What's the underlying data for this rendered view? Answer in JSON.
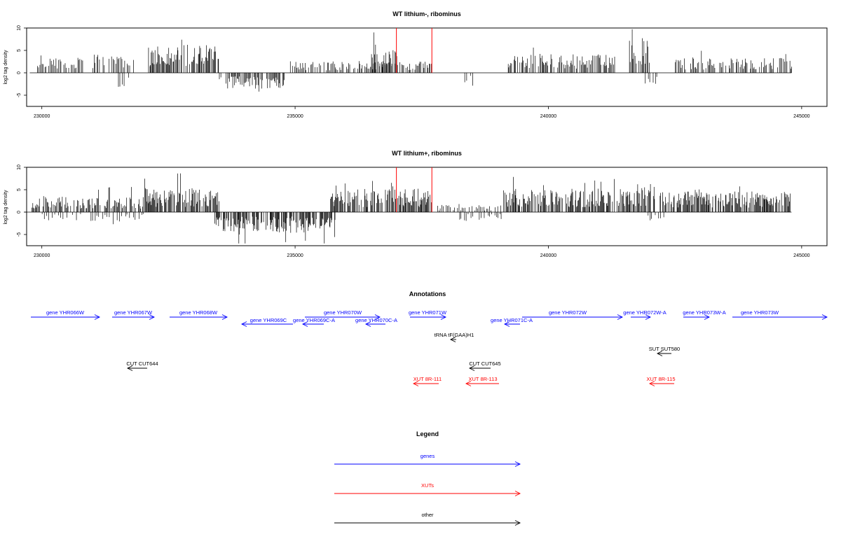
{
  "chart_data": [
    {
      "type": "bar",
      "title": "WT lithium-, ribominus",
      "ylabel": "log2 tag density",
      "xlim": [
        229700,
        245500
      ],
      "ylim": [
        -7.5,
        10
      ],
      "xticks": [
        230000,
        235000,
        240000,
        245000
      ],
      "yticks": [
        10,
        5,
        0,
        -5
      ],
      "grid": false,
      "region_markers": [
        237000,
        237700
      ],
      "segments": [
        {
          "x": [
            229900,
            230800
          ],
          "mean": 2.0,
          "density": 0.8
        },
        {
          "x": [
            231000,
            231800
          ],
          "mean": 2.5,
          "density": 0.8
        },
        {
          "x": [
            231500,
            231700
          ],
          "mean": -2.0,
          "density": 0.5
        },
        {
          "x": [
            232100,
            233500
          ],
          "mean": 3.8,
          "density": 1.4
        },
        {
          "x": [
            233500,
            234800
          ],
          "mean": -2.2,
          "density": 1.2
        },
        {
          "x": [
            234900,
            237000
          ],
          "mean": 1.6,
          "density": 0.9
        },
        {
          "x": [
            236500,
            237000
          ],
          "mean": 4.0,
          "density": 1.2
        },
        {
          "x": [
            237000,
            237700
          ],
          "mean": 1.5,
          "density": 1.0
        },
        {
          "x": [
            238300,
            238500
          ],
          "mean": -1.8,
          "density": 0.5
        },
        {
          "x": [
            239200,
            241300
          ],
          "mean": 2.5,
          "density": 1.2
        },
        {
          "x": [
            241600,
            242000
          ],
          "mean": 5.0,
          "density": 1.5
        },
        {
          "x": [
            241900,
            242200
          ],
          "mean": -1.8,
          "density": 0.6
        },
        {
          "x": [
            242500,
            244800
          ],
          "mean": 2.0,
          "density": 1.0
        }
      ]
    },
    {
      "type": "bar",
      "title": "WT lithium+, ribominus",
      "ylabel": "log2 tag density",
      "xlim": [
        229700,
        245500
      ],
      "ylim": [
        -7.5,
        10
      ],
      "xticks": [
        230000,
        235000,
        240000,
        245000
      ],
      "yticks": [
        10,
        5,
        0,
        -5
      ],
      "grid": false,
      "region_markers": [
        237000,
        237700
      ],
      "segments": [
        {
          "x": [
            229800,
            232000
          ],
          "mean": 2.2,
          "density": 1.2
        },
        {
          "x": [
            230000,
            232000
          ],
          "mean": -1.2,
          "density": 0.5
        },
        {
          "x": [
            232000,
            233500
          ],
          "mean": 3.3,
          "density": 1.5
        },
        {
          "x": [
            233400,
            235800
          ],
          "mean": -2.8,
          "density": 1.6
        },
        {
          "x": [
            235700,
            237700
          ],
          "mean": 3.2,
          "density": 1.5
        },
        {
          "x": [
            237800,
            239100
          ],
          "mean": 1.0,
          "density": 0.7
        },
        {
          "x": [
            238200,
            239100
          ],
          "mean": -1.2,
          "density": 0.6
        },
        {
          "x": [
            239100,
            241600
          ],
          "mean": 3.2,
          "density": 1.5
        },
        {
          "x": [
            241600,
            242100
          ],
          "mean": 3.8,
          "density": 1.5
        },
        {
          "x": [
            241900,
            242300
          ],
          "mean": -1.2,
          "density": 0.6
        },
        {
          "x": [
            242200,
            244800
          ],
          "mean": 2.8,
          "density": 1.5
        }
      ]
    }
  ],
  "annotations": {
    "title": "Annotations",
    "items": [
      {
        "label": "gene YHR066W",
        "kind": "gene",
        "strand": "+"
      },
      {
        "label": "gene YHR067W",
        "kind": "gene",
        "strand": "+"
      },
      {
        "label": "gene YHR068W",
        "kind": "gene",
        "strand": "+"
      },
      {
        "label": "gene YHR069C",
        "kind": "gene",
        "strand": "-"
      },
      {
        "label": "gene YHR069C-A",
        "kind": "gene",
        "strand": "-"
      },
      {
        "label": "gene YHR070W",
        "kind": "gene",
        "strand": "+"
      },
      {
        "label": "gene YHR070C-A",
        "kind": "gene",
        "strand": "-"
      },
      {
        "label": "gene YHR071W",
        "kind": "gene",
        "strand": "+"
      },
      {
        "label": "gene YHR071C-A",
        "kind": "gene",
        "strand": "-"
      },
      {
        "label": "gene YHR072W",
        "kind": "gene",
        "strand": "+"
      },
      {
        "label": "gene YHR072W-A",
        "kind": "gene",
        "strand": "+"
      },
      {
        "label": "gene YHR073W-A",
        "kind": "gene",
        "strand": "+"
      },
      {
        "label": "gene YHR073W",
        "kind": "gene",
        "strand": "+"
      },
      {
        "label": "tRNA tF(GAA)H1",
        "kind": "other",
        "strand": "-"
      },
      {
        "label": "SUT SUT580",
        "kind": "other",
        "strand": "-"
      },
      {
        "label": "CUT CUT644",
        "kind": "other",
        "strand": "-"
      },
      {
        "label": "CUT CUT645",
        "kind": "other",
        "strand": "-"
      },
      {
        "label": "XUT 8R-111",
        "kind": "xut",
        "strand": "-"
      },
      {
        "label": "XUT 8R-113",
        "kind": "xut",
        "strand": "-"
      },
      {
        "label": "XUT 8R-115",
        "kind": "xut",
        "strand": "-"
      }
    ]
  },
  "legend": {
    "title": "Legend",
    "items": [
      {
        "label": "genes",
        "color": "#0000ff"
      },
      {
        "label": "XUTs",
        "color": "#ff0000"
      },
      {
        "label": "other",
        "color": "#000000"
      }
    ]
  },
  "colors": {
    "gene": "#0000ff",
    "xut": "#ff0000",
    "other": "#000000",
    "marker": "#ff0000"
  }
}
